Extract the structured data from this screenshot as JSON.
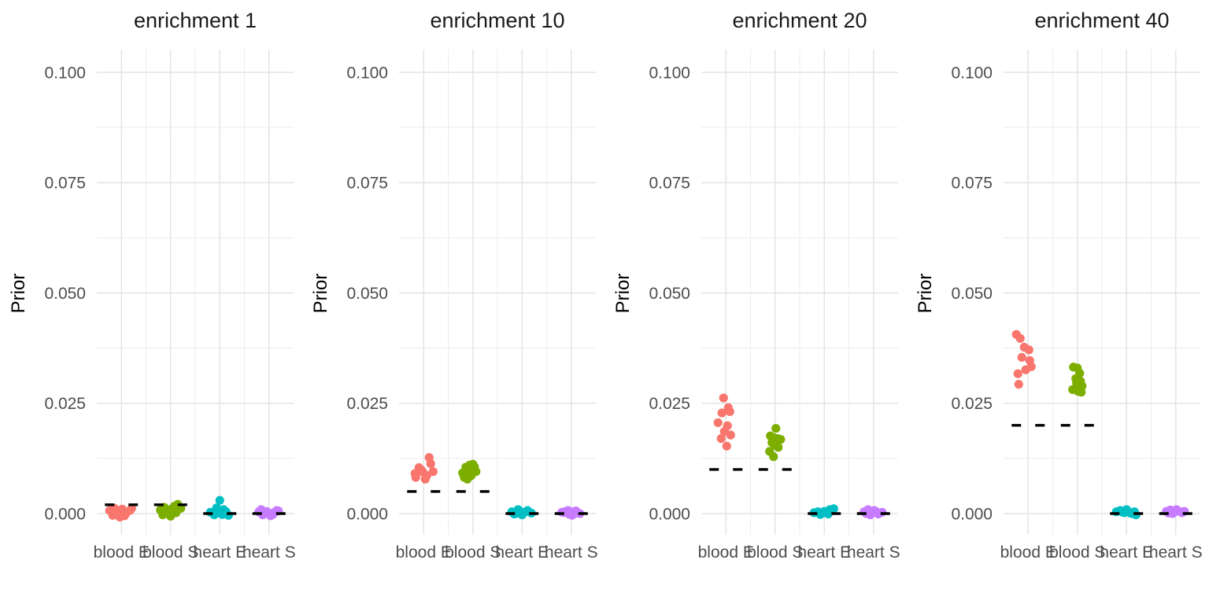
{
  "figure": {
    "background": "#FFFFFF",
    "axis_text_color": "#4D4D4D",
    "title_color": "#1A1A1A",
    "grid_major_color": "#E3E3E3",
    "grid_minor_color": "#ECECEC",
    "truth_dash_color": "#000000"
  },
  "chart_data": [
    {
      "type": "scatter",
      "title": "enrichment 1",
      "ylabel": "Prior",
      "xlabel": "",
      "categories": [
        "blood E",
        "blood S",
        "heart E",
        "heart S"
      ],
      "colors": [
        "#F8766D",
        "#7CAE00",
        "#00BFC4",
        "#C77CFF"
      ],
      "ylim": [
        0,
        0.1
      ],
      "y_ticks": [
        0,
        0.025,
        0.05,
        0.075,
        0.1
      ],
      "y_tick_labels": [
        "0.000",
        "0.025",
        "0.050",
        "0.075",
        "0.100"
      ],
      "grid": true,
      "legend": false,
      "truth_dashes": [
        0.002,
        0.002,
        0,
        0
      ],
      "series": [
        {
          "name": "blood E",
          "color": "#F8766D",
          "points": [
            [
              -15,
              0.0007
            ],
            [
              -9,
              0.0012
            ],
            [
              -4,
              0.0003
            ],
            [
              1,
              0.001
            ],
            [
              6,
              0.0001
            ],
            [
              11,
              0.0007
            ],
            [
              -11,
              -0.0004
            ],
            [
              -2,
              -0.0008
            ],
            [
              4,
              -0.0005
            ],
            [
              13,
              0.0012
            ]
          ]
        },
        {
          "name": "blood S",
          "color": "#7CAE00",
          "points": [
            [
              -13,
              0.0008
            ],
            [
              -8,
              0.0014
            ],
            [
              -3,
              0.0004
            ],
            [
              1,
              0.001
            ],
            [
              5,
              0.0017
            ],
            [
              9,
              0.0021
            ],
            [
              -10,
              -0.0003
            ],
            [
              0,
              -0.0006
            ],
            [
              7,
              0.0002
            ],
            [
              13,
              0.0012
            ]
          ]
        },
        {
          "name": "heart E",
          "color": "#00BFC4",
          "points": [
            [
              -12,
              0.0003
            ],
            [
              -7,
              -0.0003
            ],
            [
              -2,
              0.0006
            ],
            [
              3,
              -0.0002
            ],
            [
              8,
              0.0004
            ],
            [
              -4,
              0.0013
            ],
            [
              0,
              0.003
            ],
            [
              5,
              0.0009
            ],
            [
              -9,
              0.0001
            ],
            [
              11,
              -0.0004
            ]
          ]
        },
        {
          "name": "heart S",
          "color": "#C77CFF",
          "points": [
            [
              -13,
              0.0004
            ],
            [
              -8,
              -0.0003
            ],
            [
              -3,
              0.0005
            ],
            [
              2,
              -0.0005
            ],
            [
              7,
              0.0003
            ],
            [
              12,
              0.0006
            ],
            [
              -10,
              0.0009
            ],
            [
              0,
              0.0001
            ],
            [
              5,
              -0.0002
            ],
            [
              10,
              0.0007
            ]
          ]
        }
      ]
    },
    {
      "type": "scatter",
      "title": "enrichment 10",
      "ylabel": "Prior",
      "xlabel": "",
      "categories": [
        "blood E",
        "blood S",
        "heart E",
        "heart S"
      ],
      "colors": [
        "#F8766D",
        "#7CAE00",
        "#00BFC4",
        "#C77CFF"
      ],
      "ylim": [
        0,
        0.1
      ],
      "y_ticks": [
        0,
        0.025,
        0.05,
        0.075,
        0.1
      ],
      "y_tick_labels": [
        "0.000",
        "0.025",
        "0.050",
        "0.075",
        "0.100"
      ],
      "grid": true,
      "legend": false,
      "truth_dashes": [
        0.005,
        0.005,
        0,
        0
      ],
      "series": [
        {
          "name": "blood E",
          "color": "#F8766D",
          "points": [
            [
              7,
              0.0127
            ],
            [
              -6,
              0.0104
            ],
            [
              -1,
              0.0094
            ],
            [
              -11,
              0.0091
            ],
            [
              4,
              0.0086
            ],
            [
              12,
              0.0095
            ],
            [
              9,
              0.0113
            ],
            [
              -10,
              0.0082
            ],
            [
              2,
              0.0078
            ],
            [
              -3,
              0.0099
            ]
          ]
        },
        {
          "name": "blood S",
          "color": "#7CAE00",
          "points": [
            [
              -9,
              0.0105
            ],
            [
              -4,
              0.011
            ],
            [
              0,
              0.0112
            ],
            [
              -13,
              0.0092
            ],
            [
              -6,
              0.0098
            ],
            [
              2,
              0.0106
            ],
            [
              -11,
              0.0082
            ],
            [
              -2,
              0.0086
            ],
            [
              4,
              0.0095
            ],
            [
              -7,
              0.0078
            ]
          ]
        },
        {
          "name": "heart E",
          "color": "#00BFC4",
          "points": [
            [
              -13,
              0.0004
            ],
            [
              -8,
              0.0
            ],
            [
              -3,
              0.0006
            ],
            [
              2,
              0.0002
            ],
            [
              7,
              0.0007
            ],
            [
              12,
              0.0001
            ],
            [
              -5,
              0.0009
            ],
            [
              0,
              -0.0003
            ],
            [
              5,
              0.0004
            ],
            [
              -10,
              -0.0001
            ]
          ]
        },
        {
          "name": "heart S",
          "color": "#C77CFF",
          "points": [
            [
              -12,
              0.0003
            ],
            [
              -7,
              0.0005
            ],
            [
              -2,
              -0.0002
            ],
            [
              3,
              0.0004
            ],
            [
              8,
              0.0001
            ],
            [
              -4,
              0.0007
            ],
            [
              1,
              -0.0004
            ],
            [
              6,
              0.0006
            ],
            [
              -9,
              0.0002
            ],
            [
              11,
              0.0
            ]
          ]
        }
      ]
    },
    {
      "type": "scatter",
      "title": "enrichment 20",
      "ylabel": "Prior",
      "xlabel": "",
      "categories": [
        "blood E",
        "blood S",
        "heart E",
        "heart S"
      ],
      "colors": [
        "#F8766D",
        "#7CAE00",
        "#00BFC4",
        "#C77CFF"
      ],
      "ylim": [
        0,
        0.1
      ],
      "y_ticks": [
        0,
        0.025,
        0.05,
        0.075,
        0.1
      ],
      "y_tick_labels": [
        "0.000",
        "0.025",
        "0.050",
        "0.075",
        "0.100"
      ],
      "grid": true,
      "legend": false,
      "truth_dashes": [
        0.01,
        0.01,
        0,
        0
      ],
      "series": [
        {
          "name": "blood E",
          "color": "#F8766D",
          "points": [
            [
              -3,
              0.0262
            ],
            [
              3,
              0.024
            ],
            [
              5,
              0.0231
            ],
            [
              -5,
              0.0228
            ],
            [
              -10,
              0.0206
            ],
            [
              2,
              0.0199
            ],
            [
              -2,
              0.0186
            ],
            [
              6,
              0.0178
            ],
            [
              -6,
              0.017
            ],
            [
              1,
              0.0153
            ]
          ]
        },
        {
          "name": "blood S",
          "color": "#7CAE00",
          "points": [
            [
              1,
              0.0193
            ],
            [
              -6,
              0.0176
            ],
            [
              -2,
              0.0172
            ],
            [
              3,
              0.017
            ],
            [
              7,
              0.0168
            ],
            [
              -4,
              0.0161
            ],
            [
              0,
              0.0155
            ],
            [
              4,
              0.015
            ],
            [
              -7,
              0.0141
            ],
            [
              -2,
              0.0129
            ]
          ]
        },
        {
          "name": "heart E",
          "color": "#00BFC4",
          "points": [
            [
              -13,
              0.0002
            ],
            [
              -8,
              0.0004
            ],
            [
              -3,
              0.0001
            ],
            [
              2,
              0.0003
            ],
            [
              7,
              0.0009
            ],
            [
              12,
              0.0011
            ],
            [
              -5,
              -0.0002
            ],
            [
              0,
              0.0005
            ],
            [
              5,
              -0.0001
            ],
            [
              10,
              0.0007
            ]
          ]
        },
        {
          "name": "heart S",
          "color": "#C77CFF",
          "points": [
            [
              -12,
              0.0004
            ],
            [
              -7,
              0.0009
            ],
            [
              -2,
              0.0002
            ],
            [
              3,
              0.0005
            ],
            [
              8,
              0.0001
            ],
            [
              -4,
              -0.0003
            ],
            [
              1,
              0.0007
            ],
            [
              6,
              -0.0001
            ],
            [
              -9,
              0.0
            ],
            [
              11,
              0.0003
            ]
          ]
        }
      ]
    },
    {
      "type": "scatter",
      "title": "enrichment 40",
      "ylabel": "Prior",
      "xlabel": "",
      "categories": [
        "blood E",
        "blood S",
        "heart E",
        "heart S"
      ],
      "colors": [
        "#F8766D",
        "#7CAE00",
        "#00BFC4",
        "#C77CFF"
      ],
      "ylim": [
        0,
        0.1
      ],
      "y_ticks": [
        0,
        0.025,
        0.05,
        0.075,
        0.1
      ],
      "y_tick_labels": [
        "0.000",
        "0.025",
        "0.050",
        "0.075",
        "0.100"
      ],
      "grid": true,
      "legend": false,
      "truth_dashes": [
        0.02,
        0.02,
        0,
        0
      ],
      "series": [
        {
          "name": "blood E",
          "color": "#F8766D",
          "points": [
            [
              -15,
              0.0406
            ],
            [
              -10,
              0.0397
            ],
            [
              -5,
              0.0377
            ],
            [
              1,
              0.0371
            ],
            [
              -8,
              0.0354
            ],
            [
              2,
              0.0347
            ],
            [
              -13,
              0.0317
            ],
            [
              4,
              0.0333
            ],
            [
              -12,
              0.0293
            ],
            [
              -3,
              0.0326
            ]
          ]
        },
        {
          "name": "blood S",
          "color": "#7CAE00",
          "points": [
            [
              -5,
              0.0332
            ],
            [
              0,
              0.033
            ],
            [
              3,
              0.0318
            ],
            [
              -2,
              0.0306
            ],
            [
              4,
              0.03
            ],
            [
              6,
              0.0289
            ],
            [
              -6,
              0.0281
            ],
            [
              1,
              0.0277
            ],
            [
              -1,
              0.0296
            ],
            [
              5,
              0.0275
            ]
          ]
        },
        {
          "name": "heart E",
          "color": "#00BFC4",
          "points": [
            [
              -13,
              0.0004
            ],
            [
              -8,
              0.0007
            ],
            [
              -3,
              0.0002
            ],
            [
              2,
              0.0005
            ],
            [
              7,
              0.0
            ],
            [
              12,
              -0.0003
            ],
            [
              -5,
              0.0003
            ],
            [
              0,
              0.0009
            ],
            [
              5,
              0.0001
            ],
            [
              10,
              0.0004
            ]
          ]
        },
        {
          "name": "heart S",
          "color": "#C77CFF",
          "points": [
            [
              -12,
              0.0005
            ],
            [
              -7,
              0.0008
            ],
            [
              -2,
              0.0003
            ],
            [
              3,
              0.0006
            ],
            [
              8,
              0.0002
            ],
            [
              -4,
              0.0
            ],
            [
              1,
              0.0009
            ],
            [
              6,
              0.0004
            ],
            [
              -9,
              0.0001
            ],
            [
              11,
              0.0005
            ]
          ]
        }
      ]
    }
  ]
}
